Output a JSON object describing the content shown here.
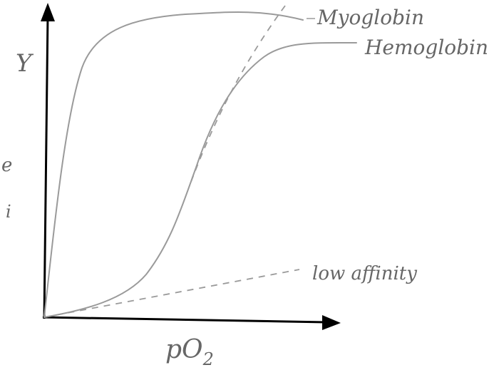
{
  "axes": {
    "y_label": "Y",
    "x_label": {
      "text": "pO",
      "subscript": "2"
    }
  },
  "curves": [
    {
      "label": "Myoglobin"
    },
    {
      "label": "Hemoglobin"
    },
    {
      "label": "low affinity"
    }
  ],
  "fragments": [
    "e",
    "i"
  ]
}
